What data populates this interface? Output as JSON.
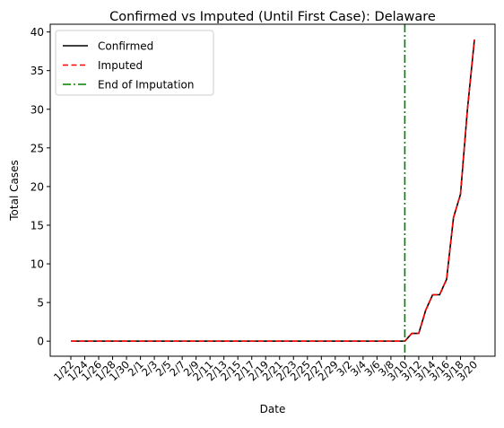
{
  "chart_data": {
    "type": "line",
    "title": "Confirmed vs Imputed (Until First Case): Delaware",
    "xlabel": "Date",
    "ylabel": "Total Cases",
    "x": [
      "1/22",
      "1/23",
      "1/24",
      "1/25",
      "1/26",
      "1/27",
      "1/28",
      "1/29",
      "1/30",
      "1/31",
      "2/1",
      "2/2",
      "2/3",
      "2/4",
      "2/5",
      "2/6",
      "2/7",
      "2/8",
      "2/9",
      "2/10",
      "2/11",
      "2/12",
      "2/13",
      "2/14",
      "2/15",
      "2/16",
      "2/17",
      "2/18",
      "2/19",
      "2/20",
      "2/21",
      "2/22",
      "2/23",
      "2/24",
      "2/25",
      "2/26",
      "2/27",
      "2/28",
      "2/29",
      "3/1",
      "3/2",
      "3/3",
      "3/4",
      "3/5",
      "3/6",
      "3/7",
      "3/8",
      "3/9",
      "3/10",
      "3/11",
      "3/12",
      "3/13",
      "3/14",
      "3/15",
      "3/16",
      "3/17",
      "3/18",
      "3/19",
      "3/20"
    ],
    "x_tick_labels": [
      "1/22",
      "1/24",
      "1/26",
      "1/28",
      "1/30",
      "2/1",
      "2/3",
      "2/5",
      "2/7",
      "2/9",
      "2/11",
      "2/13",
      "2/15",
      "2/17",
      "2/19",
      "2/21",
      "2/23",
      "2/25",
      "2/27",
      "2/29",
      "3/2",
      "3/4",
      "3/6",
      "3/8",
      "3/10",
      "3/12",
      "3/14",
      "3/16",
      "3/18",
      "3/20"
    ],
    "ylim": [
      -1.95,
      41.0
    ],
    "y_ticks": [
      0,
      5,
      10,
      15,
      20,
      25,
      30,
      35,
      40
    ],
    "series": [
      {
        "name": "Confirmed",
        "color": "#000000",
        "style": "solid",
        "values": [
          0,
          0,
          0,
          0,
          0,
          0,
          0,
          0,
          0,
          0,
          0,
          0,
          0,
          0,
          0,
          0,
          0,
          0,
          0,
          0,
          0,
          0,
          0,
          0,
          0,
          0,
          0,
          0,
          0,
          0,
          0,
          0,
          0,
          0,
          0,
          0,
          0,
          0,
          0,
          0,
          0,
          0,
          0,
          0,
          0,
          0,
          0,
          0,
          0,
          1,
          1,
          4,
          6,
          6,
          8,
          16,
          19,
          30,
          39
        ]
      },
      {
        "name": "Imputed",
        "color": "#ff0000",
        "style": "dashed",
        "values": [
          0,
          0,
          0,
          0,
          0,
          0,
          0,
          0,
          0,
          0,
          0,
          0,
          0,
          0,
          0,
          0,
          0,
          0,
          0,
          0,
          0,
          0,
          0,
          0,
          0,
          0,
          0,
          0,
          0,
          0,
          0,
          0,
          0,
          0,
          0,
          0,
          0,
          0,
          0,
          0,
          0,
          0,
          0,
          0,
          0,
          0,
          0,
          0,
          0,
          1,
          1,
          4,
          6,
          6,
          8,
          16,
          19,
          30,
          39
        ]
      }
    ],
    "vline": {
      "name": "End of Imputation",
      "x": "3/10",
      "color": "#008000",
      "style": "dashdot"
    },
    "legend_position": "top-left",
    "grid": false
  }
}
